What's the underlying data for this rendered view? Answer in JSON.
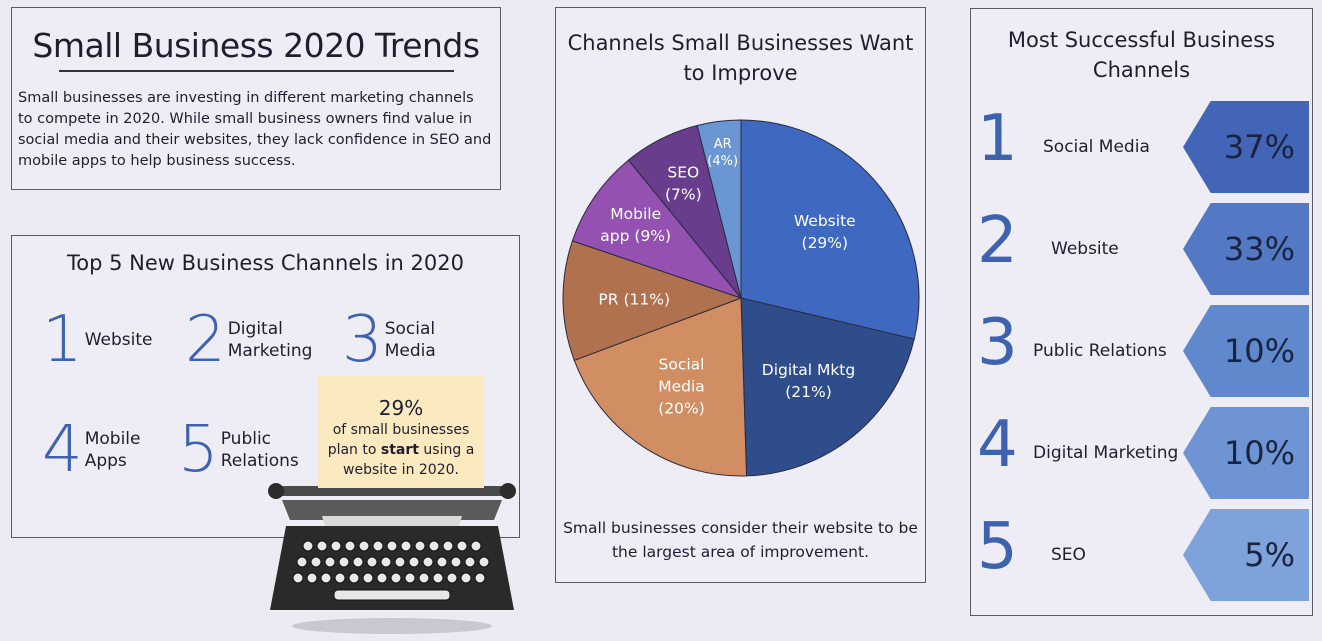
{
  "intro": {
    "title": "Small Business 2020 Trends",
    "body": "Small businesses are investing in different marketing channels to compete in 2020. While small business owners find value in social media and their websites, they lack confidence in SEO and mobile apps to help business success."
  },
  "top5": {
    "title": "Top 5 New Business Channels in 2020",
    "items": [
      {
        "rank": "1",
        "label": "Website"
      },
      {
        "rank": "2",
        "label": "Digital Marketing"
      },
      {
        "rank": "3",
        "label": "Social Media"
      },
      {
        "rank": "4",
        "label": "Mobile Apps"
      },
      {
        "rank": "5",
        "label": "Public Relations"
      }
    ]
  },
  "note": {
    "pct": "29%",
    "pre": "of small businesses plan to",
    "bold": "start",
    "post": "using a website in 2020."
  },
  "pie_caption": "Small businesses consider their website to be the largest area of improvement.",
  "ranking": {
    "title": "Most Successful Business Channels",
    "items": [
      {
        "rank": "1",
        "label": "Social Media",
        "value": "37%",
        "color": "#4365b7"
      },
      {
        "rank": "2",
        "label": "Website",
        "value": "33%",
        "color": "#5378c4"
      },
      {
        "rank": "3",
        "label": "Public Relations",
        "value": "10%",
        "color": "#6088cd"
      },
      {
        "rank": "4",
        "label": "Digital Marketing",
        "value": "10%",
        "color": "#6e94d3"
      },
      {
        "rank": "5",
        "label": "SEO",
        "value": "5%",
        "color": "#7ea3da"
      }
    ]
  },
  "chart_data": {
    "type": "pie",
    "title": "Channels Small Businesses Want to Improve",
    "slices": [
      {
        "name": "Website",
        "label": "Website (29%)",
        "value": 29,
        "color": "#3f68c0"
      },
      {
        "name": "Digital Mktg",
        "label": "Digital Mktg (21%)",
        "value": 21,
        "color": "#2f4d8a"
      },
      {
        "name": "Social Media",
        "label": "Social Media (20%)",
        "value": 20,
        "color": "#d28e63"
      },
      {
        "name": "PR",
        "label": "PR (11%)",
        "value": 11,
        "color": "#b0714f"
      },
      {
        "name": "Mobile app",
        "label": "Mobile app (9%)",
        "value": 9,
        "color": "#9551b2"
      },
      {
        "name": "SEO",
        "label": "SEO (7%)",
        "value": 7,
        "color": "#683e8c"
      },
      {
        "name": "AR",
        "label": "AR (4%)",
        "value": 4,
        "color": "#6a96d4"
      }
    ]
  }
}
